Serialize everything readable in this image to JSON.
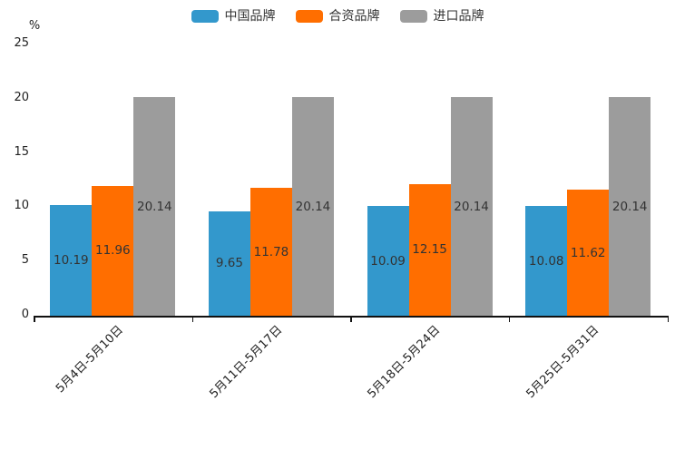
{
  "chart_data": {
    "type": "bar",
    "title": "",
    "y_axis_unit": "%",
    "categories": [
      "5月4日-5月10日",
      "5月11日-5月17日",
      "5月18日-5月24日",
      "5月25日-5月31日"
    ],
    "series": [
      {
        "name": "中国品牌",
        "color": "#3398CC",
        "values": [
          10.19,
          9.65,
          10.09,
          10.08
        ]
      },
      {
        "name": "合资品牌",
        "color": "#FF6E00",
        "values": [
          11.96,
          11.78,
          12.15,
          11.62
        ]
      },
      {
        "name": "进口品牌",
        "color": "#9C9C9C",
        "values": [
          20.14,
          20.14,
          20.14,
          20.14
        ]
      }
    ],
    "value_labels": [
      [
        "10.19",
        "11.96",
        "20.14"
      ],
      [
        "9.65",
        "11.78",
        "20.14"
      ],
      [
        "10.09",
        "12.15",
        "20.14"
      ],
      [
        "10.08",
        "11.62",
        "20.14"
      ]
    ],
    "y_ticks": [
      "0",
      "5",
      "10",
      "15",
      "20",
      "25"
    ],
    "ylim": [
      0,
      25
    ],
    "grid": false,
    "legend_position": "top",
    "axis_color": "#111111",
    "label_color": "#333333"
  }
}
